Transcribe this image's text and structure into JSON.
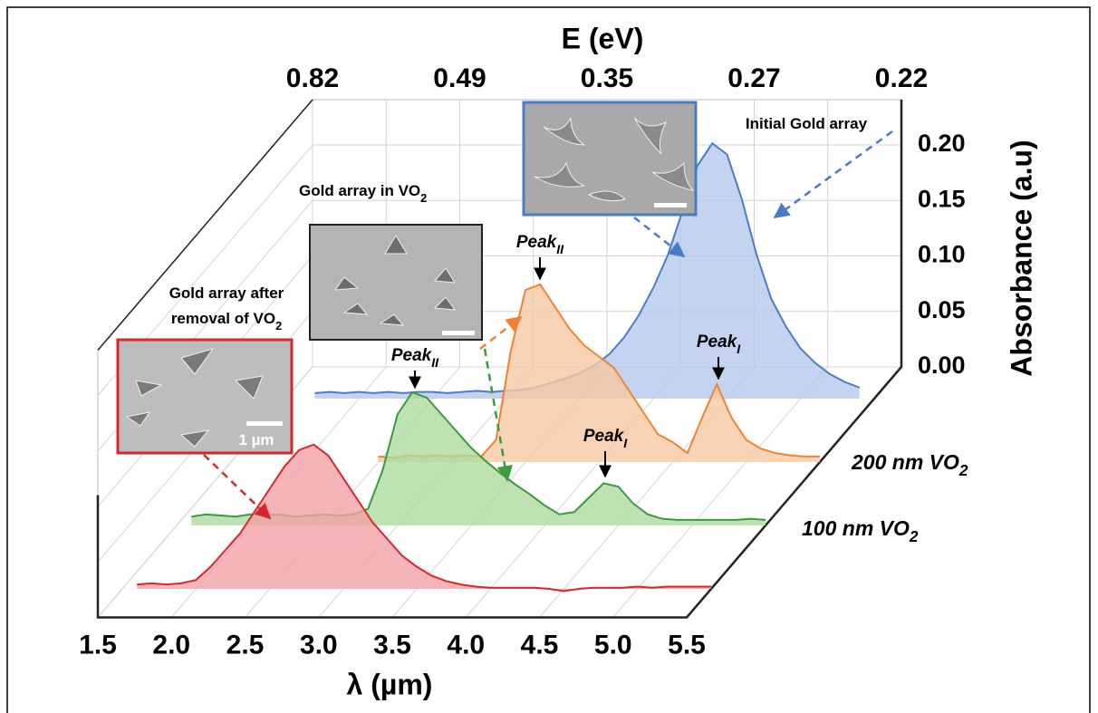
{
  "chart_data": {
    "type": "waterfall",
    "x_label": "λ (µm)",
    "x2_label": "E (eV)",
    "y_label": "Absorbance (a.u)",
    "xlim": [
      1.5,
      5.5
    ],
    "xticks": [
      1.5,
      {
        "value": 2,
        "label": "2.0"
      },
      2.5,
      {
        "value": 3,
        "label": "3.0"
      },
      3.5,
      {
        "value": 4,
        "label": "4.0"
      },
      4.5,
      {
        "value": 5,
        "label": "5.0"
      },
      5.5
    ],
    "x2ticks": [
      0.82,
      0.49,
      0.35,
      0.27,
      0.22
    ],
    "ylim": [
      0,
      0.2
    ],
    "yticks": [
      {
        "value": 0,
        "label": "0.00"
      },
      {
        "value": 0.05,
        "label": "0.05"
      },
      {
        "value": 0.1,
        "label": "0.10"
      },
      {
        "value": 0.15,
        "label": "0.15"
      },
      {
        "value": 0.2,
        "label": "0.20"
      }
    ],
    "grid": true,
    "x": [
      1.6,
      1.7,
      1.8,
      1.9,
      2.0,
      2.1,
      2.2,
      2.3,
      2.4,
      2.5,
      2.6,
      2.7,
      2.8,
      2.9,
      3.0,
      3.1,
      3.2,
      3.3,
      3.4,
      3.5,
      3.6,
      3.7,
      3.8,
      3.9,
      4.0,
      4.1,
      4.2,
      4.3,
      4.4,
      4.5,
      4.6,
      4.7,
      4.8,
      4.9,
      5.0,
      5.1,
      5.2,
      5.3,
      5.4,
      5.5
    ],
    "series": [
      {
        "name": {
          "text": [
            "Gold array after",
            "removal of VO"
          ],
          "sub": "2"
        },
        "color": "#d9262c",
        "fill": "#f2a1a6",
        "values": [
          0.004,
          0.005,
          0.004,
          0.005,
          0.008,
          0.02,
          0.035,
          0.05,
          0.07,
          0.09,
          0.11,
          0.125,
          0.13,
          0.12,
          0.1,
          0.08,
          0.06,
          0.045,
          0.03,
          0.02,
          0.012,
          0.007,
          0.004,
          0.002,
          0.001,
          0.001,
          0.001,
          0.001,
          0,
          -0.002,
          0,
          0.001,
          0.001,
          0.001,
          0.002,
          0.001,
          0.002,
          0.002,
          0.002,
          0.002
        ]
      },
      {
        "name": {
          "text": "100 nm VO",
          "sub": "2"
        },
        "color": "#3a9a3e",
        "fill": "#aedb9e",
        "values": [
          0.008,
          0.01,
          0.009,
          0.008,
          0.01,
          0.009,
          0.01,
          0.008,
          0.009,
          0.01,
          0.009,
          0.01,
          0.015,
          0.05,
          0.1,
          0.12,
          0.115,
          0.1,
          0.085,
          0.07,
          0.058,
          0.047,
          0.037,
          0.028,
          0.018,
          0.01,
          0.012,
          0.025,
          0.038,
          0.035,
          0.02,
          0.01,
          0.006,
          0.005,
          0.005,
          0.005,
          0.005,
          0.005,
          0.006,
          0.005
        ]
      },
      {
        "name": {
          "text": "200 nm VO",
          "sub": "2"
        },
        "color": "#ee8433",
        "fill": "#f8c8a2",
        "values": [
          null,
          null,
          null,
          null,
          null,
          null,
          null,
          null,
          null,
          0.005,
          0.004,
          0.006,
          0.005,
          0.006,
          0.005,
          0.006,
          0.005,
          0.02,
          0.1,
          0.155,
          0.16,
          0.14,
          0.12,
          0.105,
          0.095,
          0.085,
          0.065,
          0.045,
          0.025,
          0.018,
          0.008,
          0.04,
          0.07,
          0.04,
          0.02,
          0.012,
          0.008,
          0.006,
          0.005,
          0.005
        ]
      },
      {
        "name": {
          "text": "Initial Gold array"
        },
        "color": "#4a7cc4",
        "fill": "#b5c9ec",
        "values": [
          null,
          0.005,
          0.006,
          0.005,
          0.006,
          0.005,
          0.006,
          0.005,
          0.006,
          0.006,
          0.005,
          0.006,
          0.007,
          0.006,
          0.007,
          0.008,
          0.01,
          0.014,
          0.018,
          0.023,
          0.03,
          0.04,
          0.055,
          0.075,
          0.1,
          0.13,
          0.17,
          0.21,
          0.23,
          0.22,
          0.18,
          0.13,
          0.09,
          0.065,
          0.045,
          0.032,
          0.022,
          0.015,
          0.01,
          null
        ]
      }
    ],
    "annotations": [
      {
        "text": "Gold array in VO",
        "sub": "2"
      },
      {
        "text": "Peak",
        "sub": "II"
      },
      {
        "text": "Peak",
        "sub": "II"
      },
      {
        "text": "Peak",
        "sub": "I"
      },
      {
        "text": "Peak",
        "sub": "I"
      },
      {
        "text": "1 µm"
      }
    ]
  }
}
